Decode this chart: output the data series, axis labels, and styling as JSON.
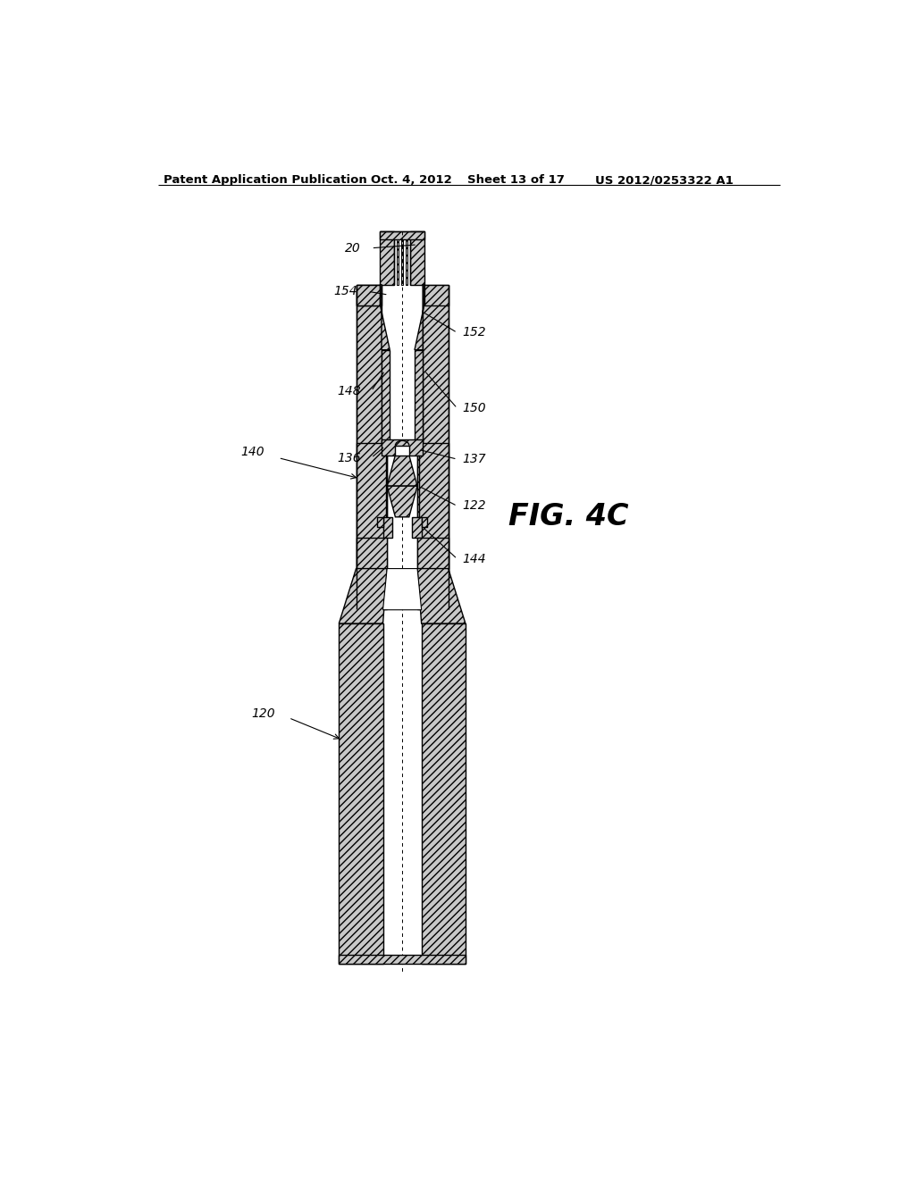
{
  "bg_color": "#ffffff",
  "header_text": "Patent Application Publication",
  "header_date": "Oct. 4, 2012",
  "header_sheet": "Sheet 13 of 17",
  "header_patent": "US 2012/0253322 A1",
  "fig_label": "FIG. 4C",
  "hatch": "////",
  "wall_gray": "#c8c8c8",
  "line_color": "#000000"
}
